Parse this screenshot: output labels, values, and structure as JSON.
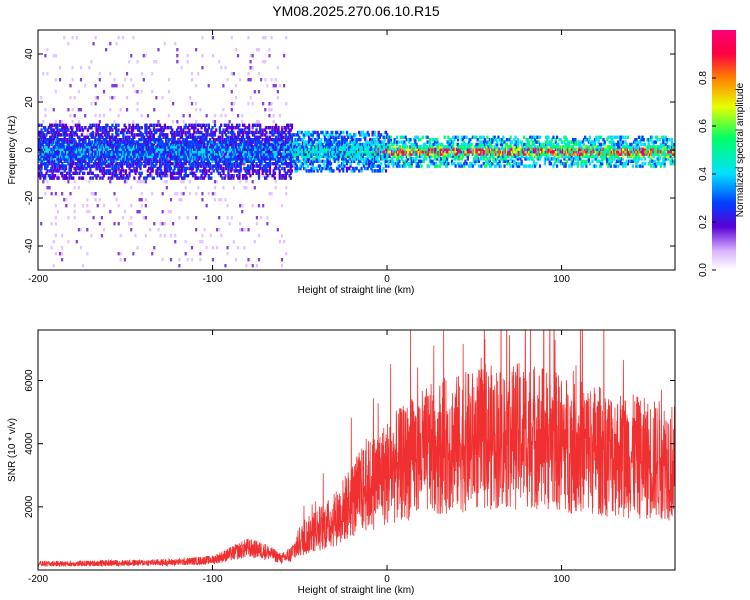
{
  "figure_title": "YM08.2025.270.06.10.R15",
  "chart_data": [
    {
      "type": "heatmap",
      "title": "YM08.2025.270.06.10.R15",
      "xlabel": "Height of straight line (km)",
      "ylabel": "Frequency (Hz)",
      "xlim": [
        -200,
        165
      ],
      "ylim": [
        -50,
        50
      ],
      "x_ticks": [
        -200,
        -100,
        0,
        100
      ],
      "y_ticks": [
        -40,
        -20,
        0,
        20,
        40
      ],
      "x_tick_labels": [
        "-200",
        "-100",
        "0",
        "100"
      ],
      "y_tick_labels": [
        "-40",
        "-20",
        "0",
        "20",
        "40"
      ],
      "colorbar": {
        "label": "Normalized spectral amplitude",
        "range": [
          0,
          1
        ],
        "ticks": [
          0,
          0.2,
          0.4,
          0.6,
          0.8
        ],
        "tick_labels": [
          "0.0",
          "0.2",
          "0.4",
          "0.6",
          "0.8"
        ],
        "colormap": [
          "#ffffff",
          "#d9b3ff",
          "#5a00d6",
          "#0040ff",
          "#00e0ff",
          "#00ff66",
          "#e6ff00",
          "#ff8000",
          "#ff0040",
          "#ff007a"
        ]
      },
      "description_series": [
        {
          "name": "broadband noise band",
          "x_range": [
            -200,
            -60
          ],
          "y_range": [
            -50,
            50
          ],
          "level": 0.05
        },
        {
          "name": "central band",
          "x_range": [
            -200,
            165
          ],
          "y_center": 0,
          "half_width_hz": [
            8,
            3
          ],
          "level": [
            0.25,
            0.9
          ]
        }
      ]
    },
    {
      "type": "line",
      "xlabel": "Height of straight line (km)",
      "ylabel": "SNR (10 * v/v)",
      "xlim": [
        -200,
        165
      ],
      "ylim": [
        0,
        7600
      ],
      "x_ticks": [
        -200,
        -100,
        0,
        100
      ],
      "y_ticks": [
        2000,
        4000,
        6000
      ],
      "x_tick_labels": [
        "-200",
        "-100",
        "0",
        "100"
      ],
      "y_tick_labels": [
        "2000",
        "4000",
        "6000"
      ],
      "series": [
        {
          "name": "SNR",
          "color": "#f03030",
          "x": [
            -200,
            -180,
            -160,
            -140,
            -120,
            -100,
            -90,
            -80,
            -70,
            -60,
            -55,
            -50,
            -45,
            -40,
            -35,
            -30,
            -25,
            -20,
            -15,
            -10,
            -5,
            0,
            10,
            20,
            30,
            40,
            50,
            60,
            70,
            80,
            90,
            100,
            110,
            120,
            130,
            140,
            150,
            160,
            165
          ],
          "values": [
            200,
            200,
            220,
            230,
            250,
            320,
            500,
            700,
            600,
            350,
            500,
            900,
            1100,
            1300,
            1400,
            1600,
            1900,
            2200,
            2500,
            2700,
            2900,
            3100,
            3400,
            3700,
            3900,
            4000,
            4100,
            4200,
            4200,
            4300,
            4200,
            4000,
            3900,
            3800,
            3700,
            3600,
            3500,
            3500,
            3400
          ]
        }
      ]
    }
  ]
}
